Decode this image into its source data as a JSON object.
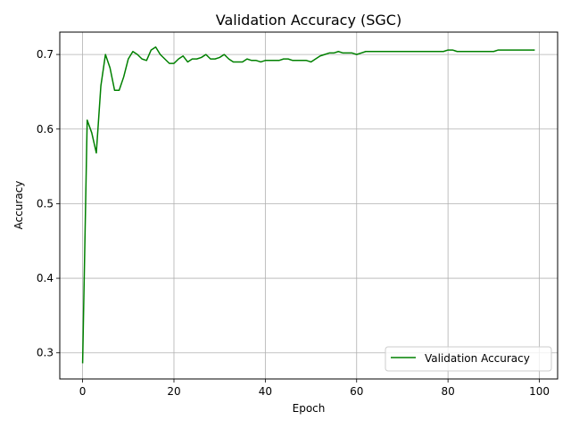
{
  "chart_data": {
    "type": "line",
    "title": "Validation Accuracy (SGC)",
    "xlabel": "Epoch",
    "ylabel": "Accuracy",
    "xlim": [
      -5,
      104
    ],
    "ylim": [
      0.265,
      0.73
    ],
    "xticks": [
      0,
      20,
      40,
      60,
      80,
      100
    ],
    "xtick_labels": [
      "0",
      "20",
      "40",
      "60",
      "80",
      "100"
    ],
    "yticks": [
      0.3,
      0.4,
      0.5,
      0.6,
      0.7
    ],
    "ytick_labels": [
      "0.3",
      "0.4",
      "0.5",
      "0.6",
      "0.7"
    ],
    "grid": true,
    "legend_position": "lower right",
    "series": [
      {
        "name": "Validation Accuracy",
        "color": "#008000",
        "x": [
          0,
          1,
          2,
          3,
          4,
          5,
          6,
          7,
          8,
          9,
          10,
          11,
          12,
          13,
          14,
          15,
          16,
          17,
          18,
          19,
          20,
          21,
          22,
          23,
          24,
          25,
          26,
          27,
          28,
          29,
          30,
          31,
          32,
          33,
          34,
          35,
          36,
          37,
          38,
          39,
          40,
          41,
          42,
          43,
          44,
          45,
          46,
          47,
          48,
          49,
          50,
          51,
          52,
          53,
          54,
          55,
          56,
          57,
          58,
          59,
          60,
          61,
          62,
          63,
          64,
          65,
          66,
          67,
          68,
          69,
          70,
          71,
          72,
          73,
          74,
          75,
          76,
          77,
          78,
          79,
          80,
          81,
          82,
          83,
          84,
          85,
          86,
          87,
          88,
          89,
          90,
          91,
          92,
          93,
          94,
          95,
          96,
          97,
          98,
          99
        ],
        "y": [
          0.286,
          0.612,
          0.595,
          0.568,
          0.658,
          0.7,
          0.682,
          0.652,
          0.652,
          0.67,
          0.694,
          0.704,
          0.7,
          0.694,
          0.692,
          0.706,
          0.71,
          0.7,
          0.694,
          0.688,
          0.688,
          0.694,
          0.698,
          0.69,
          0.694,
          0.694,
          0.696,
          0.7,
          0.694,
          0.694,
          0.696,
          0.7,
          0.694,
          0.69,
          0.69,
          0.69,
          0.694,
          0.692,
          0.692,
          0.69,
          0.692,
          0.692,
          0.692,
          0.692,
          0.694,
          0.694,
          0.692,
          0.692,
          0.692,
          0.692,
          0.69,
          0.694,
          0.698,
          0.7,
          0.702,
          0.702,
          0.704,
          0.702,
          0.702,
          0.702,
          0.7,
          0.702,
          0.704,
          0.704,
          0.704,
          0.704,
          0.704,
          0.704,
          0.704,
          0.704,
          0.704,
          0.704,
          0.704,
          0.704,
          0.704,
          0.704,
          0.704,
          0.704,
          0.704,
          0.704,
          0.706,
          0.706,
          0.704,
          0.704,
          0.704,
          0.704,
          0.704,
          0.704,
          0.704,
          0.704,
          0.704,
          0.706,
          0.706,
          0.706,
          0.706,
          0.706,
          0.706,
          0.706,
          0.706,
          0.706
        ]
      }
    ]
  }
}
